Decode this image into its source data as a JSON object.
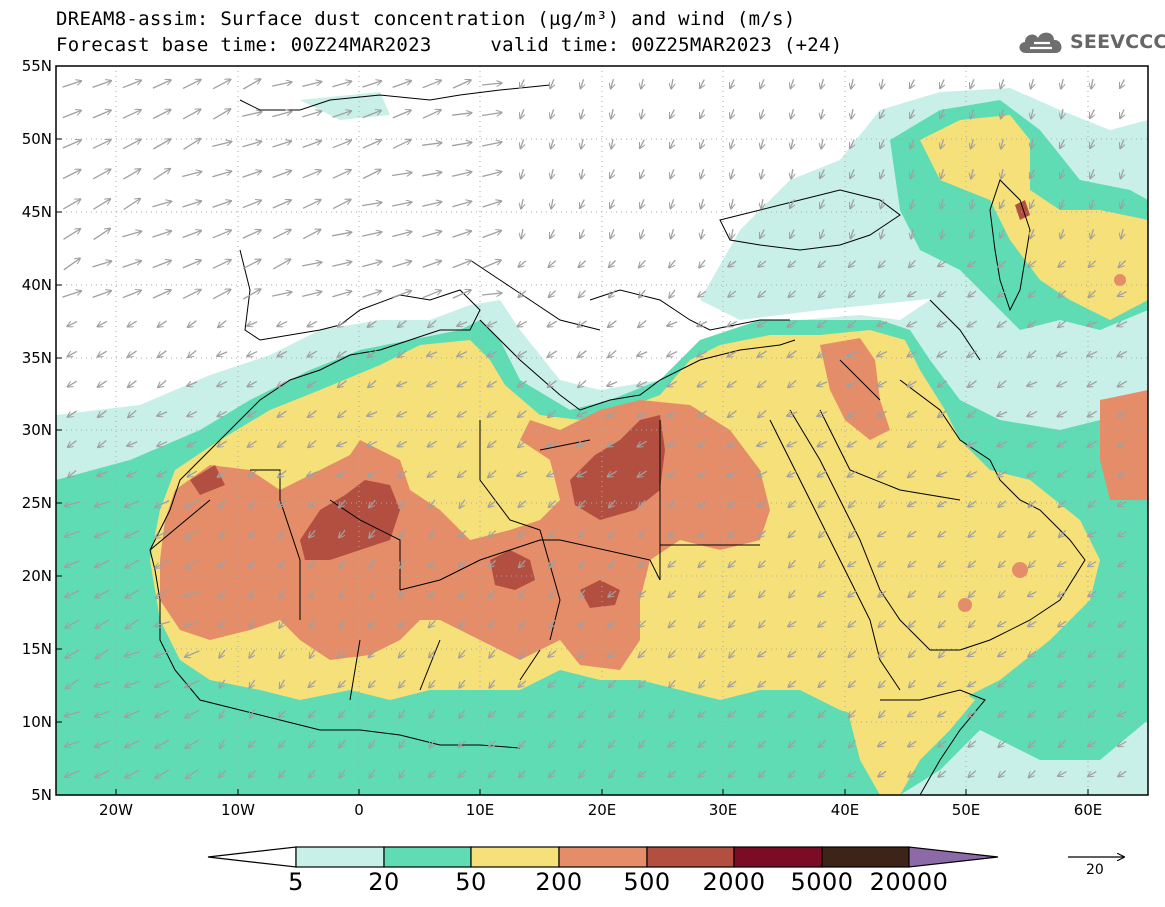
{
  "header": {
    "title_line1": "DREAM8-assim: Surface dust concentration (µg/m³) and wind (m/s)",
    "base_time": "Forecast base time: 00Z24MAR2023",
    "valid_time": "valid time: 00Z25MAR2023 (+24)"
  },
  "logo": {
    "text": "SEEVCCC",
    "icon": "cloud-icon"
  },
  "axes": {
    "lat_labels": [
      "55N",
      "50N",
      "45N",
      "40N",
      "35N",
      "30N",
      "25N",
      "20N",
      "15N",
      "10N",
      "5N"
    ],
    "lon_labels": [
      "20W",
      "10W",
      "0",
      "10E",
      "20E",
      "30E",
      "40E",
      "50E",
      "60E"
    ]
  },
  "colorbar": {
    "labels": [
      "5",
      "20",
      "50",
      "200",
      "500",
      "2000",
      "5000",
      "20000"
    ],
    "colors": [
      "#c8f0e8",
      "#5fdcb4",
      "#f5e07a",
      "#e58d68",
      "#b34f40",
      "#7c0c26",
      "#3e2418",
      "#8c6aa8"
    ]
  },
  "wind_reference": {
    "label": "20"
  },
  "colors": {
    "land": "#ffffff",
    "border": "#000000",
    "wind_arrow": "#a0a0a0"
  }
}
